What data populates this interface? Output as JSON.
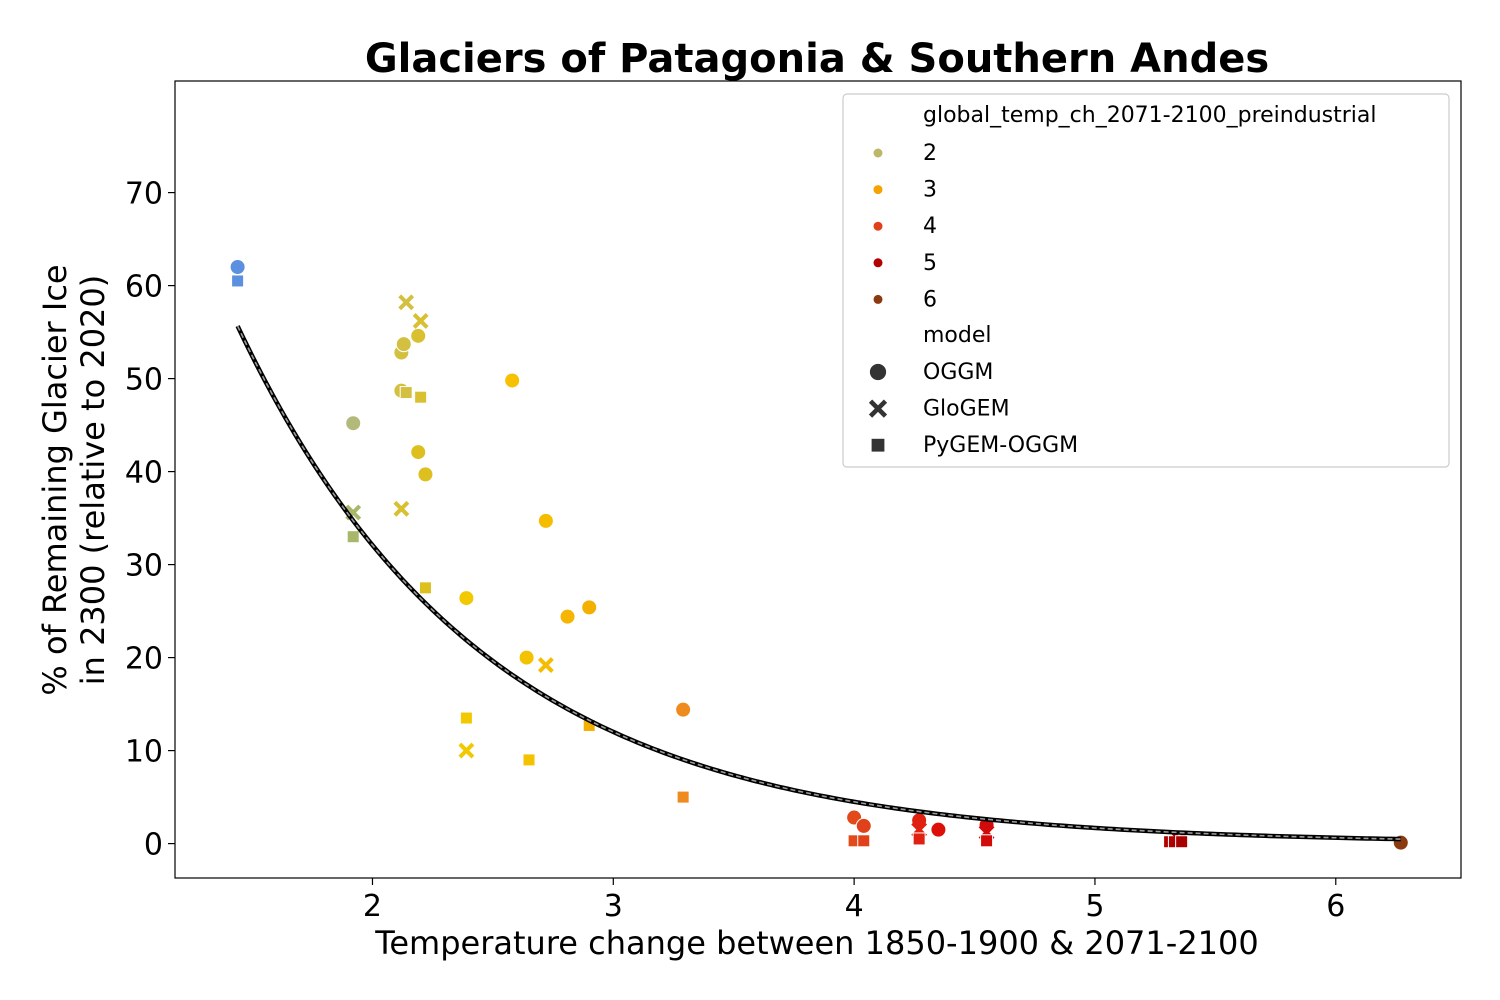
{
  "chart_data": {
    "type": "scatter",
    "title": "Glaciers of Patagonia & Southern Andes",
    "xlabel": "Temperature change between 1850-1900 & 2071-2100",
    "ylabel_lines": [
      "% of Remaining Glacier Ice",
      "in 2300 (relative to 2020)"
    ],
    "xlim": [
      1.18,
      6.52
    ],
    "ylim": [
      -3.7,
      82
    ],
    "xticks": [
      2,
      3,
      4,
      5,
      6
    ],
    "yticks": [
      0,
      10,
      20,
      30,
      40,
      50,
      60,
      70
    ],
    "legend": {
      "hue_title": "global_temp_ch_2071-2100_preindustrial",
      "hue_entries": [
        {
          "label": "2",
          "color": "#BDB76B"
        },
        {
          "label": "3",
          "color": "#F4A300"
        },
        {
          "label": "4",
          "color": "#E0401A"
        },
        {
          "label": "5",
          "color": "#B30000"
        },
        {
          "label": "6",
          "color": "#8B3A0F"
        }
      ],
      "style_title": "model",
      "style_entries": [
        {
          "label": "OGGM",
          "marker": "circle"
        },
        {
          "label": "GloGEM",
          "marker": "x"
        },
        {
          "label": "PyGEM-OGGM",
          "marker": "square"
        }
      ]
    },
    "fit_curve": {
      "a": 229.2,
      "b": 0.983,
      "x_start": 1.44,
      "x_end": 6.27
    },
    "points": [
      {
        "x": 1.44,
        "y": 62.0,
        "model": "OGGM",
        "color": "#5B8FE0"
      },
      {
        "x": 1.44,
        "y": 60.5,
        "model": "PyGEM-OGGM",
        "color": "#5B8FE0"
      },
      {
        "x": 1.92,
        "y": 45.2,
        "model": "OGGM",
        "color": "#B3B97A"
      },
      {
        "x": 1.92,
        "y": 35.6,
        "model": "GloGEM",
        "color": "#A8B86A"
      },
      {
        "x": 1.92,
        "y": 33.0,
        "model": "PyGEM-OGGM",
        "color": "#A8B86A"
      },
      {
        "x": 2.12,
        "y": 52.8,
        "model": "OGGM",
        "color": "#D4C040"
      },
      {
        "x": 2.13,
        "y": 53.7,
        "model": "OGGM",
        "color": "#D4C040"
      },
      {
        "x": 2.12,
        "y": 48.7,
        "model": "OGGM",
        "color": "#D4C040"
      },
      {
        "x": 2.14,
        "y": 58.2,
        "model": "GloGEM",
        "color": "#D4C040"
      },
      {
        "x": 2.14,
        "y": 48.5,
        "model": "PyGEM-OGGM",
        "color": "#D4C040"
      },
      {
        "x": 2.12,
        "y": 36.0,
        "model": "GloGEM",
        "color": "#D8C030"
      },
      {
        "x": 2.19,
        "y": 54.6,
        "model": "OGGM",
        "color": "#D8C030"
      },
      {
        "x": 2.2,
        "y": 56.2,
        "model": "GloGEM",
        "color": "#D8C030"
      },
      {
        "x": 2.2,
        "y": 48.0,
        "model": "PyGEM-OGGM",
        "color": "#D8C030"
      },
      {
        "x": 2.19,
        "y": 42.1,
        "model": "OGGM",
        "color": "#DDC020"
      },
      {
        "x": 2.22,
        "y": 39.7,
        "model": "OGGM",
        "color": "#DDC020"
      },
      {
        "x": 2.22,
        "y": 27.5,
        "model": "PyGEM-OGGM",
        "color": "#DDC020"
      },
      {
        "x": 2.39,
        "y": 26.4,
        "model": "OGGM",
        "color": "#F2C800"
      },
      {
        "x": 2.39,
        "y": 13.5,
        "model": "PyGEM-OGGM",
        "color": "#F2C800"
      },
      {
        "x": 2.39,
        "y": 10.0,
        "model": "GloGEM",
        "color": "#F2C800"
      },
      {
        "x": 2.58,
        "y": 49.8,
        "model": "OGGM",
        "color": "#F7C000"
      },
      {
        "x": 2.64,
        "y": 20.0,
        "model": "OGGM",
        "color": "#F3C200"
      },
      {
        "x": 2.65,
        "y": 9.0,
        "model": "PyGEM-OGGM",
        "color": "#F3C200"
      },
      {
        "x": 2.72,
        "y": 34.7,
        "model": "OGGM",
        "color": "#F5BC00"
      },
      {
        "x": 2.72,
        "y": 19.2,
        "model": "GloGEM",
        "color": "#F5BC00"
      },
      {
        "x": 2.81,
        "y": 24.4,
        "model": "OGGM",
        "color": "#F5B500"
      },
      {
        "x": 2.9,
        "y": 25.4,
        "model": "OGGM",
        "color": "#F4B000"
      },
      {
        "x": 2.9,
        "y": 12.7,
        "model": "PyGEM-OGGM",
        "color": "#F4B000"
      },
      {
        "x": 3.29,
        "y": 14.4,
        "model": "OGGM",
        "color": "#EE8A1E"
      },
      {
        "x": 3.29,
        "y": 5.0,
        "model": "PyGEM-OGGM",
        "color": "#EE8A1E"
      },
      {
        "x": 4.0,
        "y": 2.8,
        "model": "OGGM",
        "color": "#E34A1A"
      },
      {
        "x": 4.0,
        "y": 0.3,
        "model": "PyGEM-OGGM",
        "color": "#E34A1A"
      },
      {
        "x": 4.04,
        "y": 1.9,
        "model": "OGGM",
        "color": "#E0401A"
      },
      {
        "x": 4.04,
        "y": 0.3,
        "model": "PyGEM-OGGM",
        "color": "#E0401A"
      },
      {
        "x": 4.27,
        "y": 2.5,
        "model": "OGGM",
        "color": "#E02010"
      },
      {
        "x": 4.27,
        "y": 1.5,
        "model": "GloGEM",
        "color": "#E02010"
      },
      {
        "x": 4.27,
        "y": 0.5,
        "model": "PyGEM-OGGM",
        "color": "#E02010"
      },
      {
        "x": 4.35,
        "y": 1.5,
        "model": "OGGM",
        "color": "#DC1008"
      },
      {
        "x": 4.55,
        "y": 2.0,
        "model": "OGGM",
        "color": "#D10A0A"
      },
      {
        "x": 4.55,
        "y": 1.2,
        "model": "GloGEM",
        "color": "#D10A0A"
      },
      {
        "x": 4.55,
        "y": 0.3,
        "model": "PyGEM-OGGM",
        "color": "#D10A0A"
      },
      {
        "x": 5.31,
        "y": 0.2,
        "model": "PyGEM-OGGM",
        "color": "#B00000"
      },
      {
        "x": 5.33,
        "y": 0.2,
        "model": "PyGEM-OGGM",
        "color": "#B00000"
      },
      {
        "x": 5.35,
        "y": 0.5,
        "model": "GloGEM",
        "color": "#A80000"
      },
      {
        "x": 5.36,
        "y": 0.2,
        "model": "PyGEM-OGGM",
        "color": "#A80000"
      },
      {
        "x": 6.27,
        "y": 0.1,
        "model": "OGGM",
        "color": "#8B3A0F"
      }
    ]
  }
}
